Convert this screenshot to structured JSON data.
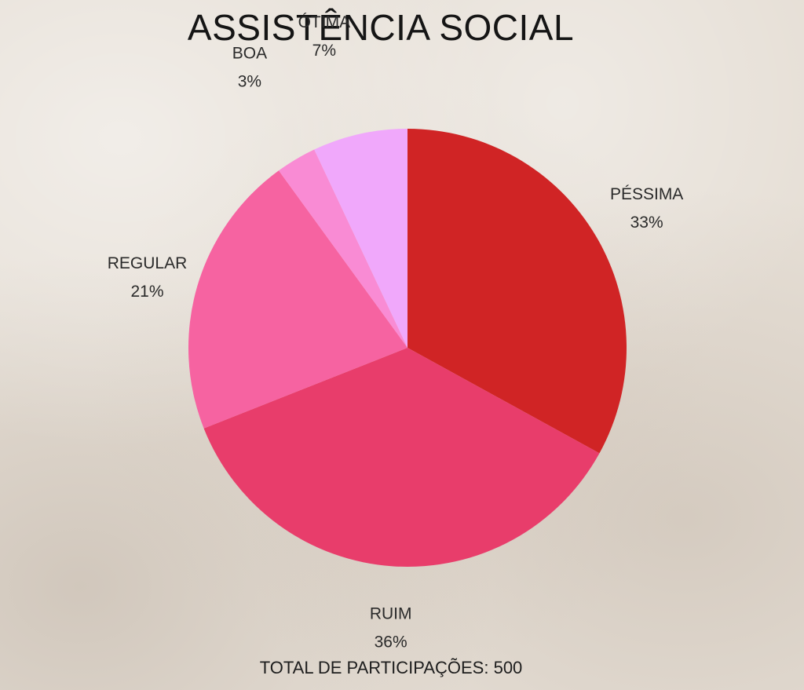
{
  "chart_data": {
    "type": "pie",
    "title": "ASSISTÊNCIA SOCIAL",
    "slices": [
      {
        "label": "PÉSSIMA",
        "value": 33,
        "value_label": "33%",
        "color": "#d02425"
      },
      {
        "label": "RUIM",
        "value": 36,
        "value_label": "36%",
        "color": "#e83d6b"
      },
      {
        "label": "REGULAR",
        "value": 21,
        "value_label": "21%",
        "color": "#f663a1"
      },
      {
        "label": "BOA",
        "value": 3,
        "value_label": "3%",
        "color": "#f98bd4"
      },
      {
        "label": "ÓTIMA",
        "value": 7,
        "value_label": "7%",
        "color": "#f0a8fb"
      }
    ],
    "start_angle": "top",
    "direction": "clockwise",
    "labels_position": "outside"
  },
  "footer": {
    "total_text": "TOTAL DE PARTICIPAÇÕES: 500"
  }
}
